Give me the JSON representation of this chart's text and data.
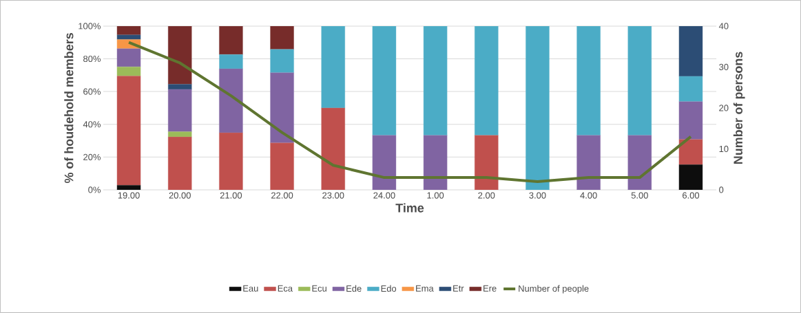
{
  "chart_data": {
    "type": "bar",
    "stacked": true,
    "xlabel": "Time",
    "ylabel": "% of houdehold members",
    "y2label": "Number of persons",
    "categories": [
      "19.00",
      "20.00",
      "21.00",
      "22.00",
      "23.00",
      "24.00",
      "1.00",
      "2.00",
      "3.00",
      "4.00",
      "5.00",
      "6.00"
    ],
    "ylim": [
      0,
      100
    ],
    "yticks": [
      {
        "value": 0,
        "label": "0%"
      },
      {
        "value": 20,
        "label": "20%"
      },
      {
        "value": 40,
        "label": "40%"
      },
      {
        "value": 60,
        "label": "60%"
      },
      {
        "value": 80,
        "label": "80%"
      },
      {
        "value": 100,
        "label": "100%"
      }
    ],
    "y2lim": [
      0,
      40
    ],
    "y2ticks": [
      0,
      10,
      20,
      30,
      40
    ],
    "grid": "y",
    "legend": "bottom",
    "series": [
      {
        "name": "Eau",
        "color": "#0d0d0d",
        "values": [
          2.8,
          0,
          0,
          0,
          0,
          0,
          0,
          0,
          0,
          0,
          0,
          15.4
        ]
      },
      {
        "name": "Eca",
        "color": "#c0504d",
        "values": [
          66.7,
          32.3,
          34.8,
          28.6,
          50,
          0,
          0,
          33.3,
          0,
          0,
          0,
          15.4
        ]
      },
      {
        "name": "Ecu",
        "color": "#9bbb59",
        "values": [
          5.6,
          3.2,
          0,
          0,
          0,
          0,
          0,
          0,
          0,
          0,
          0,
          0
        ]
      },
      {
        "name": "Ede",
        "color": "#8064a2",
        "values": [
          11.1,
          25.8,
          39.1,
          42.9,
          0,
          33.3,
          33.3,
          0,
          0,
          33.3,
          33.3,
          23.1
        ]
      },
      {
        "name": "Edo",
        "color": "#4bacc6",
        "values": [
          0,
          0,
          8.7,
          14.3,
          50,
          66.7,
          66.7,
          66.7,
          100,
          66.7,
          66.7,
          15.4
        ]
      },
      {
        "name": "Ema",
        "color": "#f79646",
        "values": [
          5.6,
          0,
          0,
          0,
          0,
          0,
          0,
          0,
          0,
          0,
          0,
          0
        ]
      },
      {
        "name": "Etr",
        "color": "#2c4d75",
        "values": [
          2.8,
          3.2,
          0,
          0,
          0,
          0,
          0,
          0,
          0,
          0,
          0,
          30.8
        ]
      },
      {
        "name": "Ere",
        "color": "#772c2a",
        "values": [
          5.6,
          35.5,
          17.4,
          14.3,
          0,
          0,
          0,
          0,
          0,
          0,
          0,
          0
        ]
      },
      {
        "name": "Number of people",
        "color": "#5f7530",
        "type": "line",
        "axis": "y2",
        "values": [
          36,
          31,
          23,
          14,
          6,
          3,
          3,
          3,
          2,
          3,
          3,
          13
        ]
      }
    ]
  }
}
